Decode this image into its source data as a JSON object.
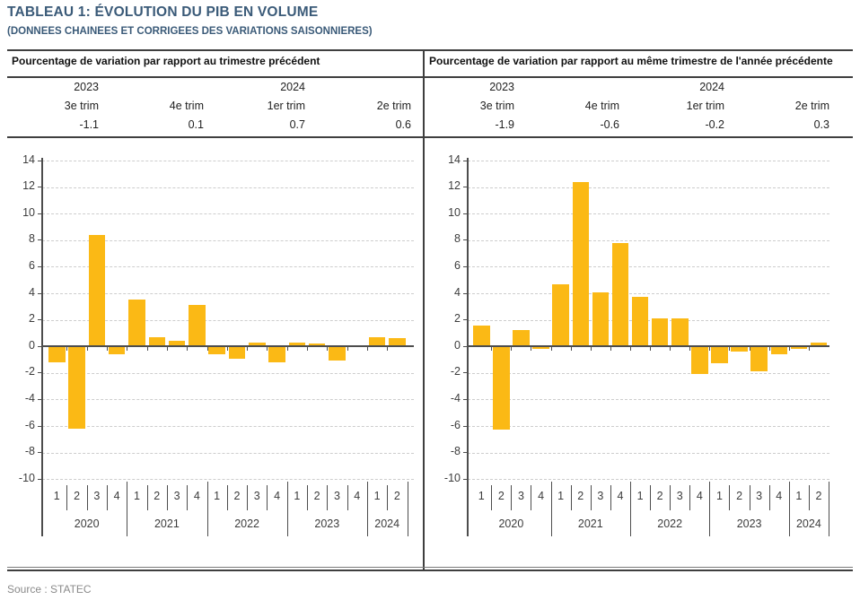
{
  "title": "TABLEAU 1: ÉVOLUTION DU PIB EN VOLUME",
  "subtitle": "(DONNEES CHAINEES ET CORRIGEES DES VARIATIONS SAISONNIERES)",
  "source": "Source : STATEC",
  "colors": {
    "bar": "#FBB915",
    "title_text": "#3A5A78",
    "axis": "#4D4D4D",
    "gridline": "#CDCDCD",
    "table_border": "#3F3F3F",
    "label_text": "#3C3C3C",
    "source_text": "#8A8A8A"
  },
  "panels": [
    {
      "header": "Pourcentage de variation par rapport au trimestre précédent",
      "years": [
        "2023",
        "",
        "2024",
        ""
      ],
      "quarters": [
        "3e trim",
        "4e trim",
        "1er trim",
        "2e trim"
      ],
      "values": [
        "-1.1",
        "0.1",
        "0.7",
        "0.6"
      ]
    },
    {
      "header": "Pourcentage de variation par rapport au même trimestre de l'année précédente",
      "years": [
        "2023",
        "",
        "2024",
        ""
      ],
      "quarters": [
        "3e trim",
        "4e trim",
        "1er trim",
        "2e trim"
      ],
      "values": [
        "-1.9",
        "-0.6",
        "-0.2",
        "0.3"
      ]
    }
  ],
  "chart_data": [
    {
      "type": "bar",
      "title": "Pourcentage de variation par rapport au trimestre précédent",
      "ylim": [
        -10,
        14
      ],
      "ytick_step": 2,
      "grid": "horizontal-dashed",
      "legend": "none",
      "years": [
        {
          "label": "2020",
          "quarters": [
            "1",
            "2",
            "3",
            "4"
          ]
        },
        {
          "label": "2021",
          "quarters": [
            "1",
            "2",
            "3",
            "4"
          ]
        },
        {
          "label": "2022",
          "quarters": [
            "1",
            "2",
            "3",
            "4"
          ]
        },
        {
          "label": "2023",
          "quarters": [
            "1",
            "2",
            "3",
            "4"
          ]
        },
        {
          "label": "2024",
          "quarters": [
            "1",
            "2"
          ]
        }
      ],
      "values": [
        -1.2,
        -6.2,
        8.4,
        -0.6,
        3.5,
        0.7,
        0.4,
        3.1,
        -0.6,
        -0.9,
        0.3,
        -1.2,
        0.3,
        0.2,
        -1.1,
        0.1,
        0.7,
        0.6
      ]
    },
    {
      "type": "bar",
      "title": "Pourcentage de variation par rapport au même trimestre de l'année précédente",
      "ylim": [
        -10,
        14
      ],
      "ytick_step": 2,
      "grid": "horizontal-dashed",
      "legend": "none",
      "years": [
        {
          "label": "2020",
          "quarters": [
            "1",
            "2",
            "3",
            "4"
          ]
        },
        {
          "label": "2021",
          "quarters": [
            "1",
            "2",
            "3",
            "4"
          ]
        },
        {
          "label": "2022",
          "quarters": [
            "1",
            "2",
            "3",
            "4"
          ]
        },
        {
          "label": "2023",
          "quarters": [
            "1",
            "2",
            "3",
            "4"
          ]
        },
        {
          "label": "2024",
          "quarters": [
            "1",
            "2"
          ]
        }
      ],
      "values": [
        1.6,
        -6.3,
        1.2,
        -0.2,
        4.7,
        12.4,
        4.1,
        7.8,
        3.7,
        2.1,
        2.1,
        -2.1,
        -1.3,
        -0.4,
        -1.9,
        -0.6,
        -0.2,
        0.3
      ]
    }
  ]
}
